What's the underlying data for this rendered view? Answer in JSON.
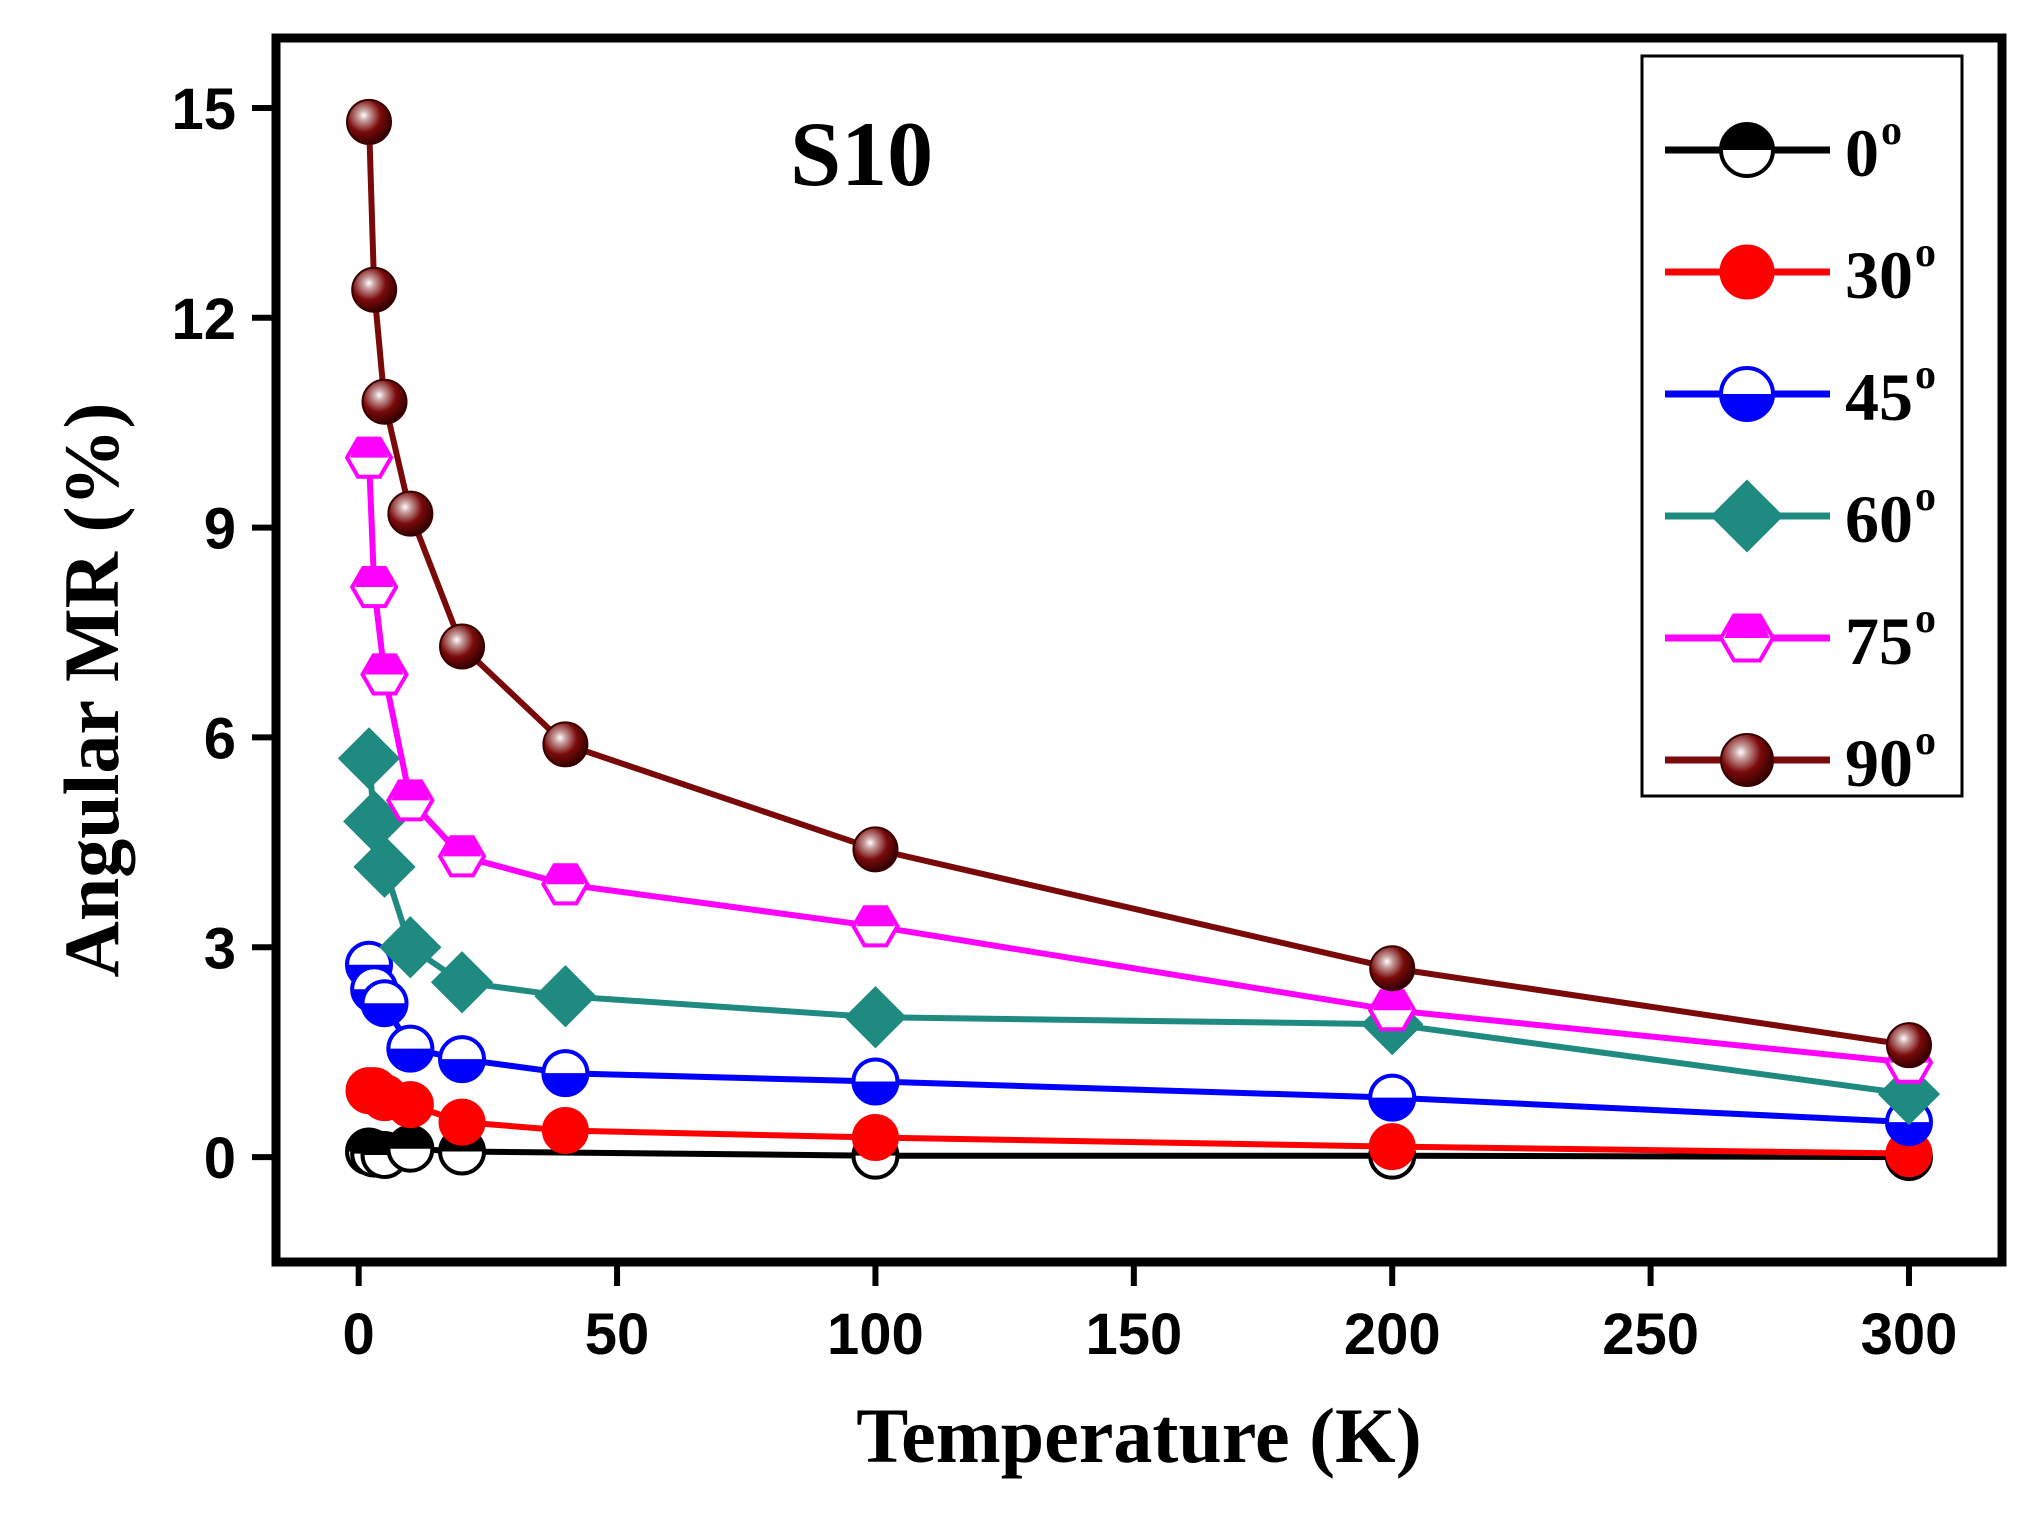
{
  "chart_data": {
    "type": "line",
    "annotation": "S10",
    "xlabel": "Temperature (K)",
    "ylabel": "Angular MR (%)",
    "xlim": [
      -16,
      318
    ],
    "ylim": [
      -1.5,
      16
    ],
    "x_ticks": [
      0,
      50,
      100,
      150,
      200,
      250,
      300
    ],
    "y_ticks": [
      0,
      3,
      6,
      9,
      12,
      15
    ],
    "legend_position": "top-right",
    "series": [
      {
        "name": "0",
        "unit": "o",
        "color": "#000000",
        "marker": "circle-half-black",
        "x": [
          2,
          3,
          5,
          10,
          20,
          100,
          200,
          300
        ],
        "y": [
          0.08,
          0.05,
          0.03,
          0.12,
          0.08,
          0.02,
          0.02,
          0.0
        ]
      },
      {
        "name": "30",
        "unit": "o",
        "color": "#ff0000",
        "marker": "circle-filled",
        "x": [
          2,
          3,
          5,
          10,
          20,
          40,
          100,
          200,
          300
        ],
        "y": [
          0.95,
          0.95,
          0.85,
          0.75,
          0.5,
          0.38,
          0.28,
          0.15,
          0.05
        ]
      },
      {
        "name": "45",
        "unit": "o",
        "color": "#0000ff",
        "marker": "circle-half-bottom",
        "x": [
          2,
          3,
          5,
          10,
          20,
          40,
          100,
          200,
          300
        ],
        "y": [
          2.75,
          2.4,
          2.2,
          1.55,
          1.4,
          1.2,
          1.08,
          0.85,
          0.5
        ]
      },
      {
        "name": "60",
        "unit": "o",
        "color": "#1f8a80",
        "marker": "diamond",
        "x": [
          2,
          3,
          5,
          10,
          20,
          40,
          100,
          200,
          300
        ],
        "y": [
          5.7,
          4.8,
          4.15,
          3.0,
          2.5,
          2.3,
          2.0,
          1.9,
          0.9
        ]
      },
      {
        "name": "75",
        "unit": "o",
        "color": "#ff00ff",
        "marker": "hexagon-half",
        "x": [
          2,
          3,
          5,
          10,
          20,
          40,
          100,
          200,
          300
        ],
        "y": [
          10.0,
          8.15,
          6.9,
          5.1,
          4.3,
          3.9,
          3.3,
          2.1,
          1.35
        ]
      },
      {
        "name": "90",
        "unit": "o",
        "color": "#7a0a0a",
        "marker": "sphere",
        "x": [
          2,
          3,
          5,
          10,
          20,
          40,
          100,
          200,
          300
        ],
        "y": [
          14.8,
          12.4,
          10.8,
          9.2,
          7.3,
          5.9,
          4.4,
          2.7,
          1.6
        ]
      }
    ]
  }
}
